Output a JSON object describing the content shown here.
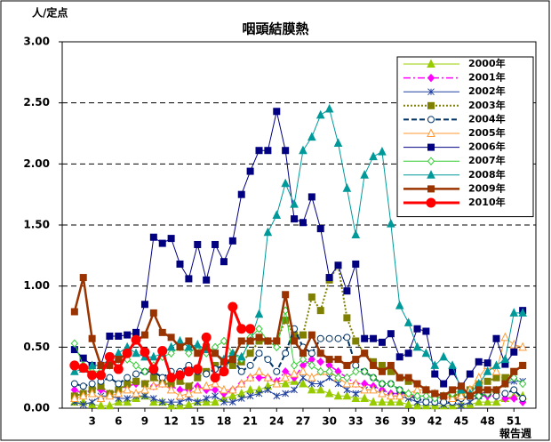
{
  "chart_data": {
    "type": "line",
    "title": "咽頭結膜熱",
    "y_label": "人/定点",
    "x_label": "報告週",
    "x": [
      1,
      2,
      3,
      4,
      5,
      6,
      7,
      8,
      9,
      10,
      11,
      12,
      13,
      14,
      15,
      16,
      17,
      18,
      19,
      20,
      21,
      22,
      23,
      24,
      25,
      26,
      27,
      28,
      29,
      30,
      31,
      32,
      33,
      34,
      35,
      36,
      37,
      38,
      39,
      40,
      41,
      42,
      43,
      44,
      45,
      46,
      47,
      48,
      49,
      50,
      51,
      52
    ],
    "xlim": [
      -0.4,
      53.5
    ],
    "xticks": [
      3,
      6,
      9,
      12,
      15,
      18,
      21,
      24,
      27,
      30,
      33,
      36,
      39,
      42,
      45,
      48,
      51
    ],
    "ylim": [
      0,
      3
    ],
    "yticks": [
      {
        "value": 0,
        "label": "0.00"
      },
      {
        "value": 0.5,
        "label": "0.50"
      },
      {
        "value": 1,
        "label": "1.00"
      },
      {
        "value": 1.5,
        "label": "1.50"
      },
      {
        "value": 2,
        "label": "2.00"
      },
      {
        "value": 2.5,
        "label": "2.50"
      },
      {
        "value": 3,
        "label": "3.00"
      }
    ],
    "grid": true,
    "legend": "upper right",
    "series": [
      {
        "name": "2000年",
        "color": "#99cc00",
        "marker": "triangle",
        "dash": "none",
        "width": 1,
        "values": [
          0.05,
          0.05,
          0.03,
          0.02,
          0.02,
          0.05,
          0.05,
          0.08,
          0.1,
          0.05,
          0.05,
          0.02,
          0.02,
          0.03,
          0.05,
          0.05,
          0.05,
          0.08,
          0.1,
          0.12,
          0.15,
          0.15,
          0.18,
          0.2,
          0.2,
          0.22,
          0.2,
          0.15,
          0.15,
          0.12,
          0.1,
          0.1,
          0.08,
          0.08,
          0.05,
          0.05,
          0.05,
          0.05,
          0.03,
          0.02,
          0.02,
          0.02,
          0.02,
          0.02,
          0.03,
          0.03,
          0.05,
          0.05,
          0.05,
          0.08,
          0.1,
          0.1
        ]
      },
      {
        "name": "2001年",
        "color": "#ff00ff",
        "marker": "diamond",
        "dash": "8,3,2,3",
        "width": 1.5,
        "values": [
          0.15,
          0.12,
          0.15,
          0.15,
          0.12,
          0.15,
          0.18,
          0.2,
          0.2,
          0.18,
          0.2,
          0.18,
          0.15,
          0.15,
          0.18,
          0.15,
          0.15,
          0.12,
          0.15,
          0.2,
          0.25,
          0.25,
          0.25,
          0.22,
          0.3,
          0.25,
          0.35,
          0.4,
          0.38,
          0.35,
          0.3,
          0.25,
          0.2,
          0.2,
          0.18,
          0.15,
          0.12,
          0.12,
          0.1,
          0.1,
          0.1,
          0.1,
          0.08,
          0.08,
          0.08,
          0.1,
          0.1,
          0.1,
          0.1,
          0.08,
          0.08,
          0.05
        ]
      },
      {
        "name": "2002年",
        "color": "#2040a0",
        "marker": "asterisk",
        "dash": "none",
        "width": 1,
        "values": [
          0.05,
          0.03,
          0.05,
          0.1,
          0.1,
          0.08,
          0.08,
          0.1,
          0.1,
          0.08,
          0.05,
          0.05,
          0.05,
          0.08,
          0.05,
          0.08,
          0.1,
          0.05,
          0.05,
          0.08,
          0.1,
          0.12,
          0.15,
          0.1,
          0.12,
          0.15,
          0.25,
          0.2,
          0.2,
          0.25,
          0.2,
          0.15,
          0.12,
          0.15,
          0.15,
          0.12,
          0.1,
          0.1,
          0.08,
          0.05,
          0.05,
          0.05,
          0.03,
          0.05,
          0.02,
          0.05,
          0.1,
          0.15,
          0.15,
          0.2,
          0.22,
          0.22
        ]
      },
      {
        "name": "2003年",
        "color": "#808000",
        "marker": "square",
        "dash": "2,2",
        "width": 2,
        "values": [
          0.1,
          0.12,
          0.15,
          0.18,
          0.12,
          0.15,
          0.2,
          0.22,
          0.2,
          0.25,
          0.2,
          0.2,
          0.22,
          0.18,
          0.25,
          0.3,
          0.35,
          0.38,
          0.35,
          0.38,
          0.45,
          0.55,
          0.55,
          0.55,
          0.72,
          0.6,
          0.6,
          0.91,
          0.8,
          1.05,
          1.17,
          0.74,
          0.55,
          0.45,
          0.38,
          0.35,
          0.3,
          0.25,
          0.22,
          0.2,
          0.15,
          0.12,
          0.1,
          0.1,
          0.12,
          0.15,
          0.2,
          0.22,
          0.25,
          0.25,
          0.3,
          0.35
        ]
      },
      {
        "name": "2004年",
        "color": "#003366",
        "marker": "circle-open",
        "dash": "6,3",
        "width": 2,
        "values": [
          0.2,
          0.18,
          0.2,
          0.22,
          0.25,
          0.2,
          0.25,
          0.28,
          0.3,
          0.3,
          0.25,
          0.3,
          0.3,
          0.35,
          0.3,
          0.28,
          0.32,
          0.35,
          0.4,
          0.3,
          0.35,
          0.45,
          0.4,
          0.3,
          0.45,
          0.65,
          0.5,
          0.45,
          0.57,
          0.57,
          0.57,
          0.58,
          0.35,
          0.3,
          0.25,
          0.2,
          0.2,
          0.15,
          0.1,
          0.08,
          0.05,
          0.05,
          0.05,
          0.05,
          0.08,
          0.1,
          0.1,
          0.12,
          0.1,
          0.12,
          0.15,
          0.08
        ]
      },
      {
        "name": "2005年",
        "color": "#ff9933",
        "marker": "triangle-open",
        "dash": "none",
        "width": 1,
        "values": [
          0.08,
          0.1,
          0.12,
          0.08,
          0.1,
          0.12,
          0.15,
          0.12,
          0.15,
          0.18,
          0.2,
          0.15,
          0.1,
          0.12,
          0.15,
          0.18,
          0.2,
          0.15,
          0.15,
          0.2,
          0.25,
          0.3,
          0.25,
          0.2,
          0.25,
          0.28,
          0.3,
          0.25,
          0.3,
          0.3,
          0.25,
          0.2,
          0.2,
          0.15,
          0.15,
          0.12,
          0.1,
          0.1,
          0.12,
          0.15,
          0.15,
          0.12,
          0.1,
          0.08,
          0.1,
          0.15,
          0.25,
          0.35,
          0.3,
          0.58,
          0.52,
          0.5
        ]
      },
      {
        "name": "2006年",
        "color": "#000080",
        "marker": "square",
        "dash": "none",
        "width": 1,
        "values": [
          0.48,
          0.41,
          0.35,
          0.35,
          0.59,
          0.59,
          0.6,
          0.62,
          0.85,
          1.4,
          1.35,
          1.39,
          1.18,
          1.06,
          1.34,
          1.05,
          1.34,
          1.2,
          1.37,
          1.75,
          1.94,
          2.11,
          2.11,
          2.43,
          2.11,
          1.55,
          1.52,
          1.73,
          1.47,
          1.07,
          1.17,
          0.96,
          1.18,
          0.57,
          0.57,
          0.54,
          0.61,
          0.42,
          0.45,
          0.65,
          0.63,
          0.28,
          0.2,
          0.3,
          0.18,
          0.28,
          0.38,
          0.37,
          0.57,
          0.36,
          0.46,
          0.8
        ]
      },
      {
        "name": "2007年",
        "color": "#33cc33",
        "marker": "diamond-open",
        "dash": "none",
        "width": 1,
        "values": [
          0.53,
          0.35,
          0.3,
          0.3,
          0.35,
          0.4,
          0.4,
          0.35,
          0.3,
          0.35,
          0.42,
          0.45,
          0.5,
          0.45,
          0.5,
          0.45,
          0.5,
          0.55,
          0.45,
          0.4,
          0.58,
          0.65,
          0.55,
          0.5,
          0.8,
          0.35,
          0.4,
          0.35,
          0.3,
          0.3,
          0.25,
          0.25,
          0.3,
          0.3,
          0.25,
          0.2,
          0.2,
          0.15,
          0.12,
          0.1,
          0.1,
          0.08,
          0.1,
          0.12,
          0.15,
          0.1,
          0.1,
          0.12,
          0.15,
          0.2,
          0.25,
          0.2
        ]
      },
      {
        "name": "2008年",
        "color": "#009999",
        "marker": "triangle",
        "dash": "none",
        "width": 1,
        "values": [
          0.3,
          0.32,
          0.35,
          0.35,
          0.4,
          0.45,
          0.5,
          0.45,
          0.42,
          0.42,
          0.45,
          0.5,
          0.55,
          0.5,
          0.52,
          0.48,
          0.45,
          0.4,
          0.45,
          0.42,
          0.55,
          0.77,
          1.44,
          1.58,
          1.84,
          1.67,
          2.11,
          2.22,
          2.4,
          2.45,
          2.17,
          1.8,
          1.42,
          1.91,
          2.06,
          2.1,
          1.51,
          0.84,
          0.7,
          0.5,
          0.45,
          0.35,
          0.42,
          0.35,
          0.15,
          0.12,
          0.2,
          0.3,
          0.35,
          0.4,
          0.78,
          0.78
        ]
      },
      {
        "name": "2009年",
        "color": "#993300",
        "marker": "square",
        "dash": "none",
        "width": 2.5,
        "values": [
          0.79,
          1.07,
          0.57,
          0.35,
          0.35,
          0.4,
          0.45,
          0.55,
          0.6,
          0.78,
          0.62,
          0.58,
          0.5,
          0.55,
          0.45,
          0.5,
          0.45,
          0.38,
          0.4,
          0.55,
          0.55,
          0.58,
          0.55,
          0.55,
          0.93,
          0.55,
          0.45,
          0.6,
          0.45,
          0.4,
          0.4,
          0.35,
          0.4,
          0.45,
          0.35,
          0.3,
          0.35,
          0.25,
          0.25,
          0.2,
          0.15,
          0.12,
          0.1,
          0.15,
          0.18,
          0.1,
          0.15,
          0.15,
          0.15,
          0.2,
          0.3,
          0.35
        ]
      },
      {
        "name": "2010年",
        "color": "#ff0000",
        "marker": "circle",
        "dash": "none",
        "width": 3,
        "values": [
          0.35,
          0.33,
          0.27,
          0.27,
          0.42,
          0.32,
          0.45,
          0.56,
          0.46,
          0.32,
          0.47,
          0.25,
          0.27,
          0.3,
          0.32,
          0.58,
          0.25,
          0.3,
          0.83,
          0.65,
          0.65,
          null,
          null,
          null,
          null,
          null,
          null,
          null,
          null,
          null,
          null,
          null,
          null,
          null,
          null,
          null,
          null,
          null,
          null,
          null,
          null,
          null,
          null,
          null,
          null,
          null,
          null,
          null,
          null,
          null,
          null,
          null
        ]
      }
    ]
  }
}
